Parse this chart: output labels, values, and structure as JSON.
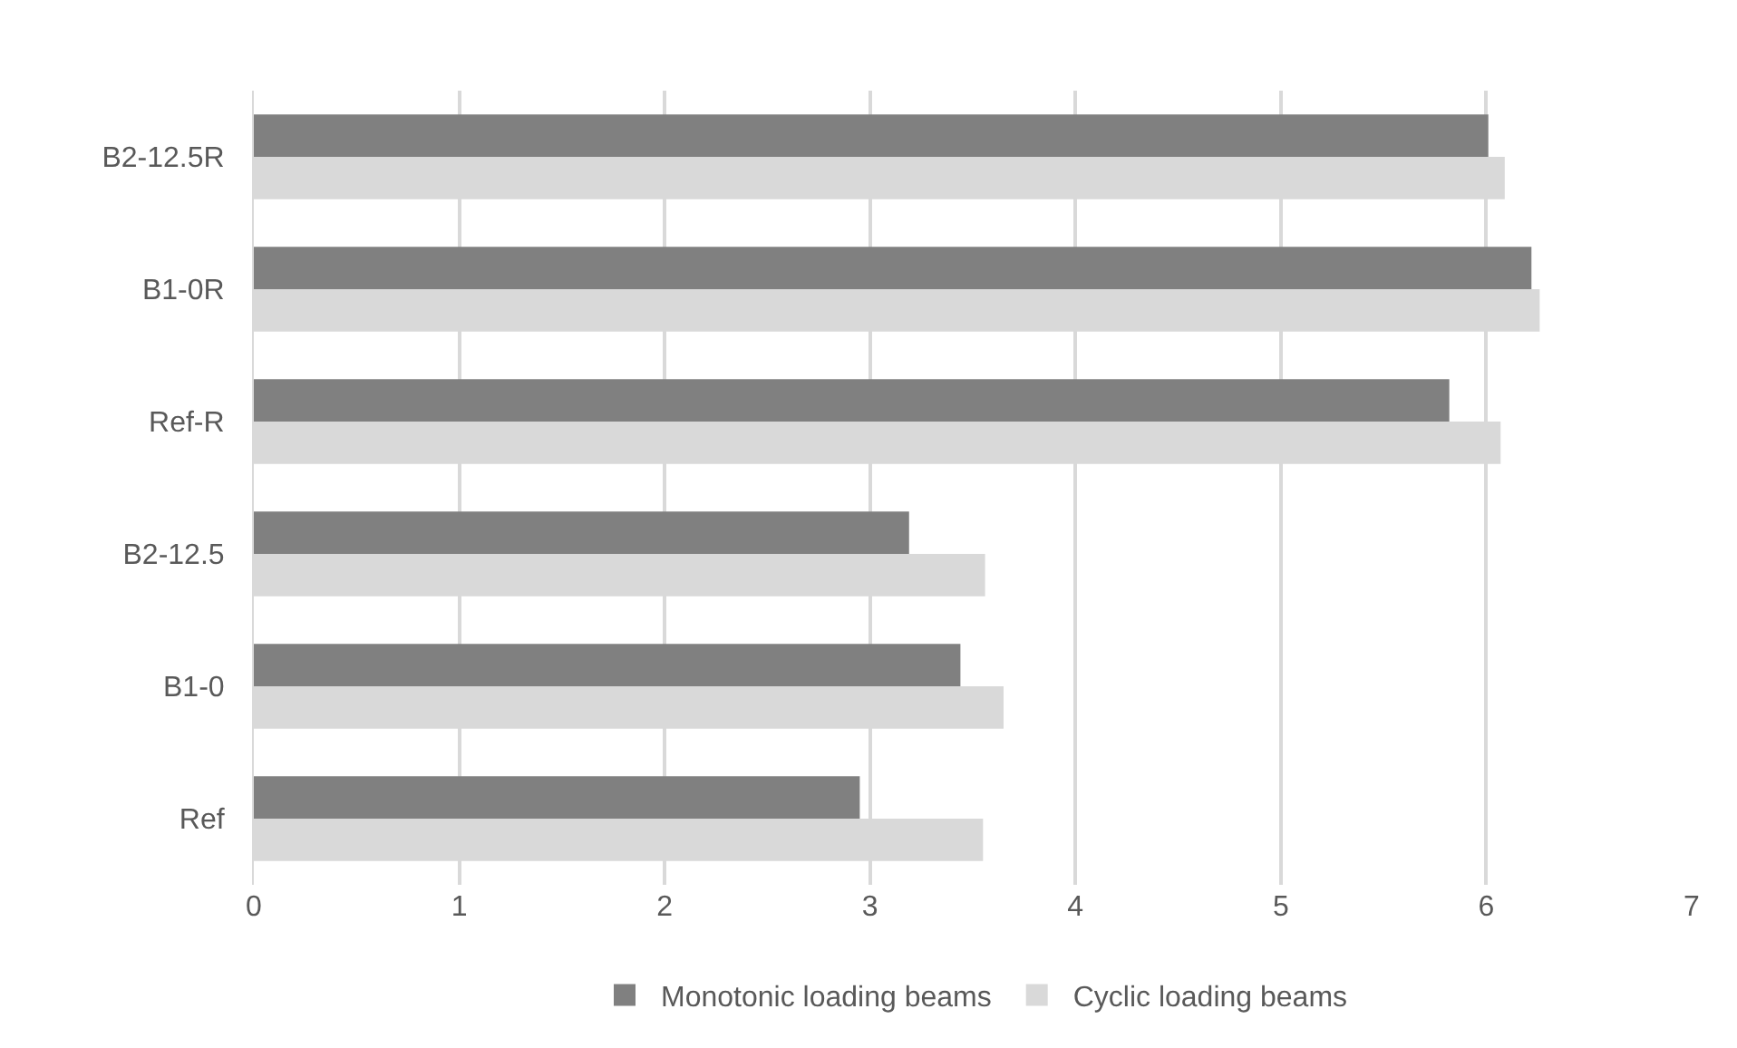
{
  "chart_data": {
    "type": "bar",
    "orientation": "horizontal",
    "categories": [
      "B2-12.5R",
      "B1-0R",
      "Ref-R",
      "B2-12.5",
      "B1-0",
      "Ref"
    ],
    "series": [
      {
        "name": "Monotonic loading beams",
        "color": "#808080",
        "values": [
          6.01,
          6.22,
          5.82,
          3.19,
          3.44,
          2.95
        ]
      },
      {
        "name": "Cyclic loading beams",
        "color": "#d9d9d9",
        "values": [
          6.09,
          6.26,
          6.07,
          3.56,
          3.65,
          3.55
        ]
      }
    ],
    "xlim": [
      0,
      7
    ],
    "xticks": [
      0,
      1,
      2,
      3,
      4,
      5,
      6,
      7
    ],
    "grid": "x",
    "legend": "bottom"
  }
}
